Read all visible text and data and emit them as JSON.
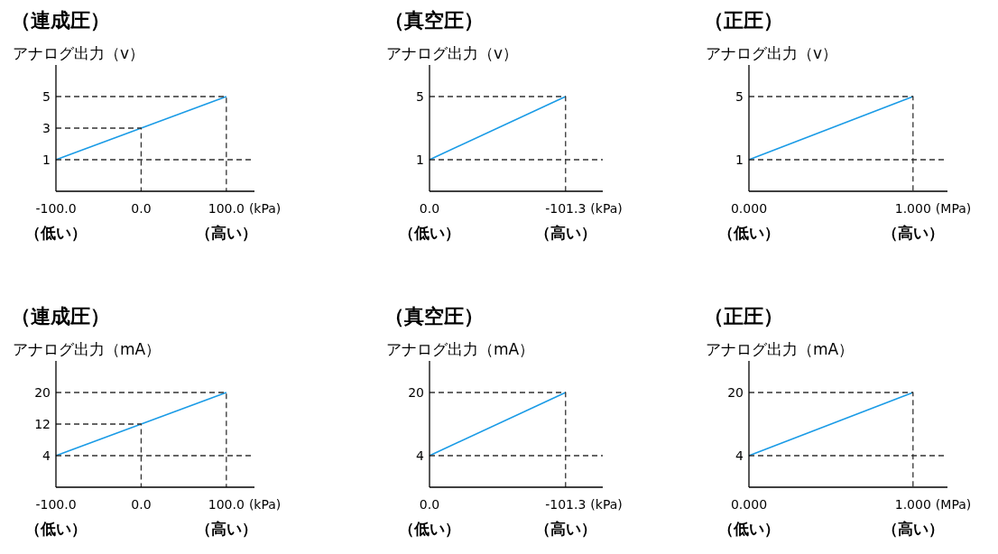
{
  "chart_data": [
    {
      "type": "line",
      "title": "（連成圧）",
      "ylabel": "アナログ出力（v）",
      "xlabel": "(kPa)",
      "xlim": [
        -100,
        133
      ],
      "ylim": [
        -1,
        7
      ],
      "xticks": [
        {
          "value": -100,
          "label": "-100.0"
        },
        {
          "value": 0,
          "label": "0.0"
        },
        {
          "value": 100,
          "label": "100.0"
        }
      ],
      "yticks": [
        1,
        3,
        5
      ],
      "annotations": [
        "（低い）",
        "（高い）"
      ],
      "series": [
        {
          "color": "#1a9be6",
          "line_style": "solid",
          "x": [
            -100,
            100
          ],
          "values": [
            1,
            5
          ]
        },
        {
          "color": "#333333",
          "line_style": "dashed",
          "x": [
            -100,
            133
          ],
          "values": [
            1,
            1
          ]
        },
        {
          "color": "#333333",
          "line_style": "dashed",
          "x": [
            -100,
            0,
            0
          ],
          "values": [
            3,
            3,
            -1
          ]
        },
        {
          "color": "#333333",
          "line_style": "dashed",
          "x": [
            -100,
            100,
            100
          ],
          "values": [
            5,
            5,
            -1
          ]
        }
      ]
    },
    {
      "type": "line",
      "title": "（真空圧）",
      "ylabel": "アナログ出力（v）",
      "xlabel": "(kPa)",
      "xlim": [
        0,
        -129
      ],
      "ylim": [
        -1,
        7
      ],
      "xticks": [
        {
          "value": 0,
          "label": "0.0"
        },
        -101.3
      ],
      "yticks": [
        1,
        5
      ],
      "annotations": [
        "（低い）",
        "（高い）"
      ],
      "series": [
        {
          "color": "#1a9be6",
          "line_style": "solid",
          "x": [
            0,
            -101.3
          ],
          "values": [
            1,
            5
          ]
        },
        {
          "color": "#333333",
          "line_style": "dashed",
          "x": [
            0,
            -129
          ],
          "values": [
            1,
            1
          ]
        },
        {
          "color": "#333333",
          "line_style": "dashed",
          "x": [
            0,
            -101.3,
            -101.3
          ],
          "values": [
            5,
            5,
            -1
          ]
        }
      ]
    },
    {
      "type": "line",
      "title": "（正圧）",
      "ylabel": "アナログ出力（v）",
      "xlabel": "(MPa)",
      "xlim": [
        0,
        1.21
      ],
      "ylim": [
        -1,
        7
      ],
      "xticks": [
        {
          "value": 0,
          "label": "0.000"
        },
        {
          "value": 1,
          "label": "1.000"
        }
      ],
      "yticks": [
        1,
        5
      ],
      "annotations": [
        "（低い）",
        "（高い）"
      ],
      "series": [
        {
          "color": "#1a9be6",
          "line_style": "solid",
          "x": [
            0,
            1
          ],
          "values": [
            1,
            5
          ]
        },
        {
          "color": "#333333",
          "line_style": "dashed",
          "x": [
            0,
            1.21
          ],
          "values": [
            1,
            1
          ]
        },
        {
          "color": "#333333",
          "line_style": "dashed",
          "x": [
            0,
            1,
            1
          ],
          "values": [
            5,
            5,
            -1
          ]
        }
      ]
    },
    {
      "type": "line",
      "title": "（連成圧）",
      "ylabel": "アナログ出力（mA）",
      "xlabel": "(kPa)",
      "xlim": [
        -100,
        133
      ],
      "ylim": [
        -4,
        28
      ],
      "xticks": [
        {
          "value": -100,
          "label": "-100.0"
        },
        {
          "value": 0,
          "label": "0.0"
        },
        {
          "value": 100,
          "label": "100.0"
        }
      ],
      "yticks": [
        4,
        12,
        20
      ],
      "annotations": [
        "（低い）",
        "（高い）"
      ],
      "series": [
        {
          "color": "#1a9be6",
          "line_style": "solid",
          "x": [
            -100,
            100
          ],
          "values": [
            4,
            20
          ]
        },
        {
          "color": "#333333",
          "line_style": "dashed",
          "x": [
            -100,
            133
          ],
          "values": [
            4,
            4
          ]
        },
        {
          "color": "#333333",
          "line_style": "dashed",
          "x": [
            -100,
            0,
            0
          ],
          "values": [
            12,
            12,
            -4
          ]
        },
        {
          "color": "#333333",
          "line_style": "dashed",
          "x": [
            -100,
            100,
            100
          ],
          "values": [
            20,
            20,
            -4
          ]
        }
      ]
    },
    {
      "type": "line",
      "title": "（真空圧）",
      "ylabel": "アナログ出力（mA）",
      "xlabel": "(kPa)",
      "xlim": [
        0,
        -129
      ],
      "ylim": [
        -4,
        28
      ],
      "xticks": [
        {
          "value": 0,
          "label": "0.0"
        },
        -101.3
      ],
      "yticks": [
        4,
        20
      ],
      "annotations": [
        "（低い）",
        "（高い）"
      ],
      "series": [
        {
          "color": "#1a9be6",
          "line_style": "solid",
          "x": [
            0,
            -101.3
          ],
          "values": [
            4,
            20
          ]
        },
        {
          "color": "#333333",
          "line_style": "dashed",
          "x": [
            0,
            -129
          ],
          "values": [
            4,
            4
          ]
        },
        {
          "color": "#333333",
          "line_style": "dashed",
          "x": [
            0,
            -101.3,
            -101.3
          ],
          "values": [
            20,
            20,
            -4
          ]
        }
      ]
    },
    {
      "type": "line",
      "title": "（正圧）",
      "ylabel": "アナログ出力（mA）",
      "xlabel": "(MPa)",
      "xlim": [
        0,
        1.21
      ],
      "ylim": [
        -4,
        28
      ],
      "xticks": [
        {
          "value": 0,
          "label": "0.000"
        },
        {
          "value": 1,
          "label": "1.000"
        }
      ],
      "yticks": [
        4,
        20
      ],
      "annotations": [
        "（低い）",
        "（高い）"
      ],
      "series": [
        {
          "color": "#1a9be6",
          "line_style": "solid",
          "x": [
            0,
            1
          ],
          "values": [
            4,
            20
          ]
        },
        {
          "color": "#333333",
          "line_style": "dashed",
          "x": [
            0,
            1.21
          ],
          "values": [
            4,
            4
          ]
        },
        {
          "color": "#333333",
          "line_style": "dashed",
          "x": [
            0,
            1,
            1
          ],
          "values": [
            20,
            20,
            -4
          ]
        }
      ]
    }
  ]
}
